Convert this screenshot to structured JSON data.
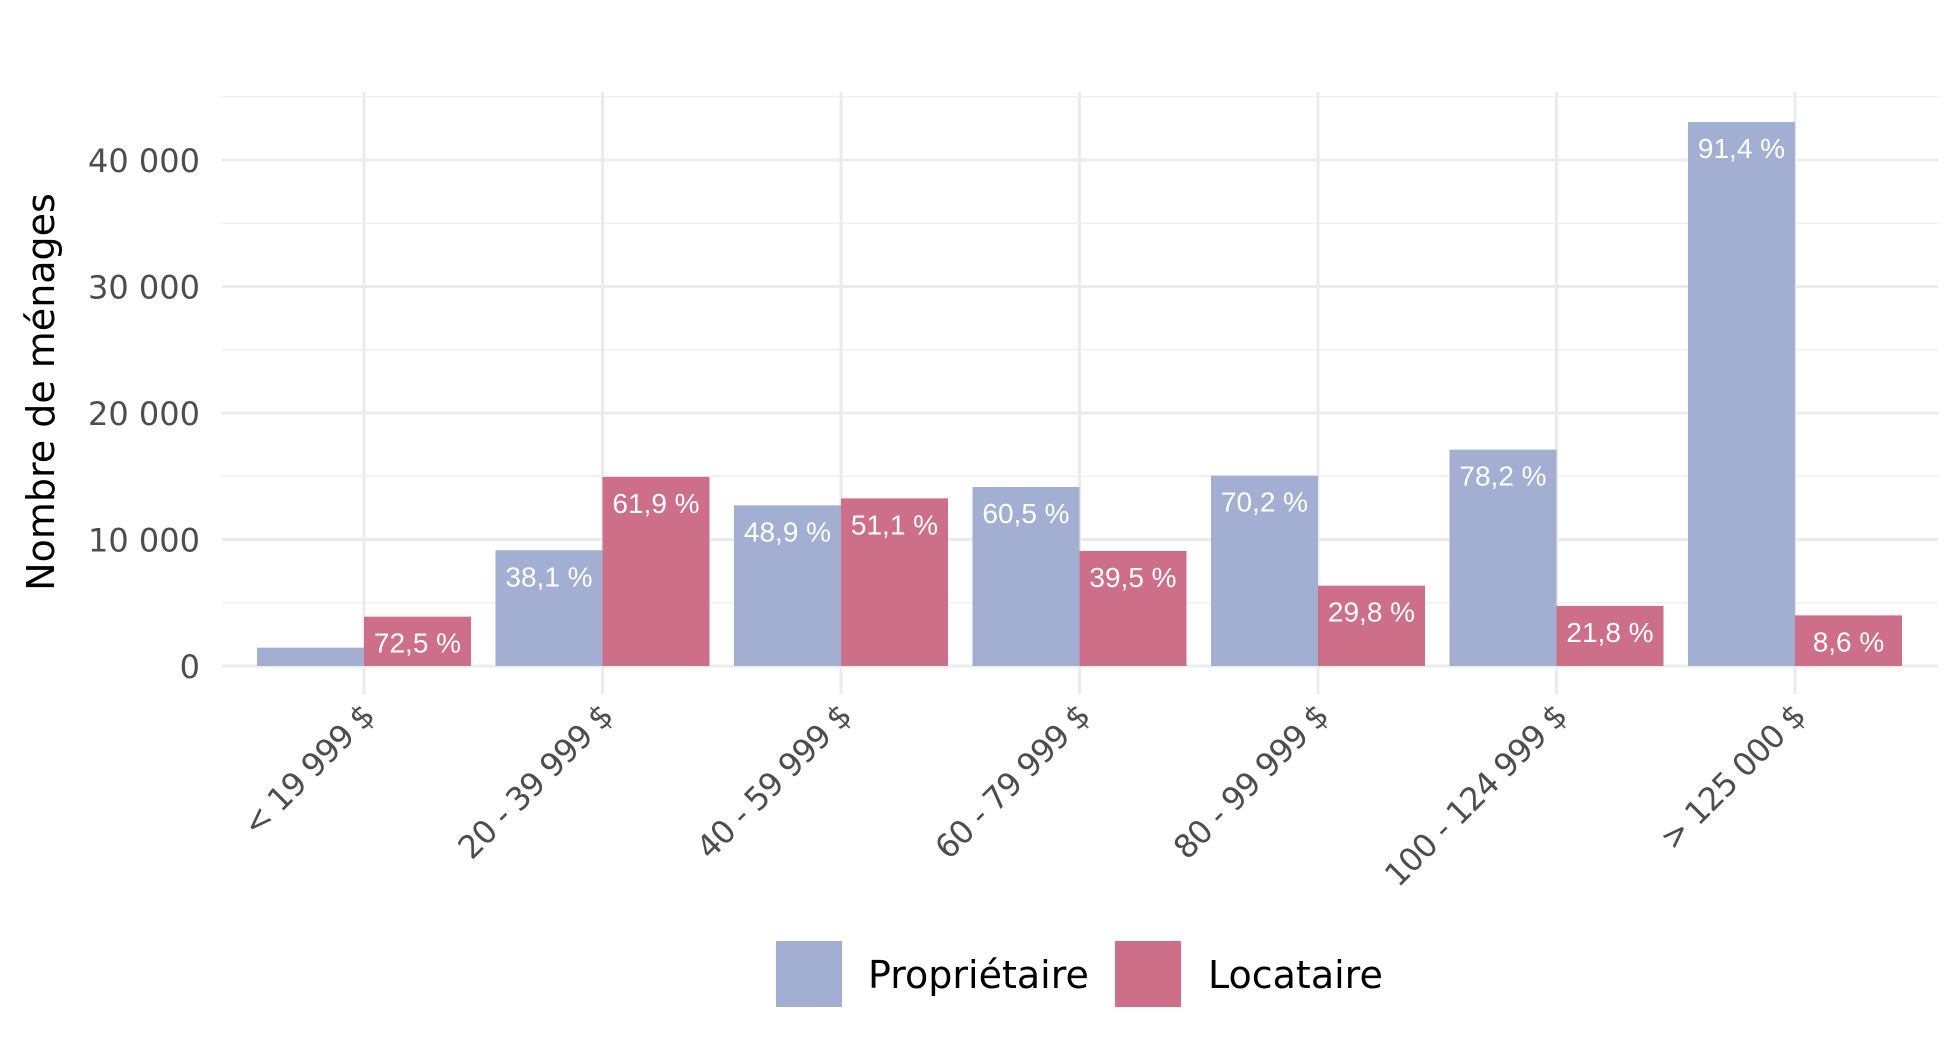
{
  "chart_data": {
    "type": "bar",
    "ylabel": "Nombre de ménages",
    "xlabel": "",
    "ylim": [
      0,
      45000
    ],
    "y_ticks": [
      0,
      10000,
      20000,
      30000,
      40000
    ],
    "y_tick_labels": [
      "0",
      "10 000",
      "20 000",
      "30 000",
      "40 000"
    ],
    "grid": true,
    "legend_position": "bottom",
    "categories": [
      "< 19 999 $",
      "20 - 39 999 $",
      "40 - 59 999 $",
      "60 - 79 999 $",
      "80 - 99 999 $",
      "100 - 124 999 $",
      "> 125 000 $"
    ],
    "series": [
      {
        "name": "Propriétaire",
        "color": "#a2afd2",
        "values": [
          1450,
          9150,
          12700,
          14150,
          15050,
          17100,
          43000
        ],
        "labels": [
          "",
          "38,1 %",
          "48,9 %",
          "60,5 %",
          "70,2 %",
          "78,2 %",
          "91,4 %"
        ]
      },
      {
        "name": "Locataire",
        "color": "#cd6f89",
        "values": [
          3900,
          14950,
          13250,
          9100,
          6350,
          4750,
          4000
        ],
        "labels": [
          "72,5 %",
          "61,9 %",
          "51,1 %",
          "39,5 %",
          "29,8 %",
          "21,8 %",
          "8,6 %"
        ]
      }
    ]
  }
}
